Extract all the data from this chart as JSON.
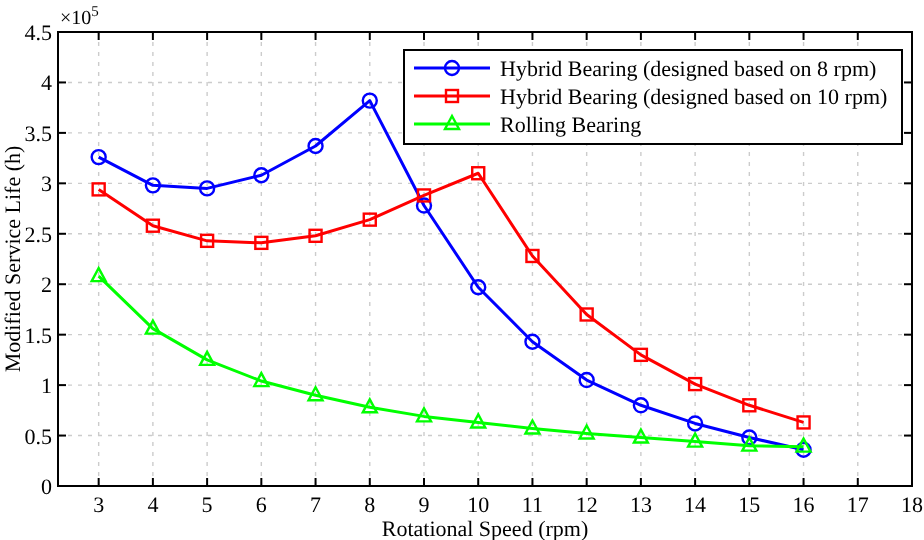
{
  "chart_data": {
    "type": "line",
    "xlabel": "Rotational Speed (rpm)",
    "ylabel": "Modified Service Life (h)",
    "annotations": [
      "×10$^{5}$"
    ],
    "x": [
      3,
      4,
      5,
      6,
      7,
      8,
      9,
      10,
      11,
      12,
      13,
      14,
      15,
      16
    ],
    "xlim": [
      2.25,
      18
    ],
    "xticks": [
      3,
      4,
      5,
      6,
      7,
      8,
      9,
      10,
      11,
      12,
      13,
      14,
      15,
      16,
      17,
      18
    ],
    "ylim": [
      0,
      4.5
    ],
    "yticks": [
      0,
      0.5,
      1,
      1.5,
      2,
      2.5,
      3,
      3.5,
      4,
      4.5
    ],
    "grid": true,
    "legend": "top right",
    "line_style": "solid",
    "series": [
      {
        "name": "Hybrid Bearing (designed based on 8 rpm)",
        "color": "#0000ff",
        "marker": "circle",
        "values": [
          3.26,
          2.98,
          2.95,
          3.08,
          3.37,
          3.82,
          2.78,
          1.97,
          1.43,
          1.05,
          0.8,
          0.62,
          0.48,
          0.36
        ]
      },
      {
        "name": "Hybrid Bearing (designed based on 10 rpm)",
        "color": "#ff0000",
        "marker": "square",
        "values": [
          2.94,
          2.58,
          2.43,
          2.41,
          2.48,
          2.64,
          2.88,
          3.1,
          2.28,
          1.7,
          1.3,
          1.01,
          0.8,
          0.63
        ]
      },
      {
        "name": "Rolling Bearing",
        "color": "#00ff00",
        "marker": "triangle",
        "values": [
          2.08,
          1.56,
          1.25,
          1.04,
          0.9,
          0.78,
          0.69,
          0.63,
          0.57,
          0.52,
          0.48,
          0.44,
          0.4,
          0.39
        ]
      }
    ]
  }
}
